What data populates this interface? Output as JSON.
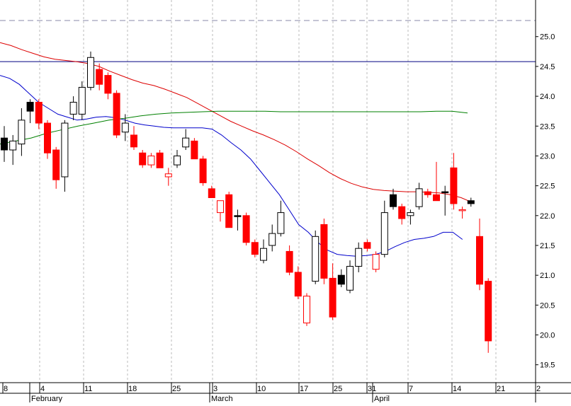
{
  "chart_data": {
    "type": "candlestick",
    "title": "",
    "xlabel": "",
    "ylabel": "",
    "ylim": [
      19.2,
      25.4
    ],
    "y_ticks": [
      "25.0",
      "24.5",
      "24.0",
      "23.5",
      "23.0",
      "22.5",
      "22.0",
      "21.5",
      "21.0",
      "20.5",
      "20.0",
      "19.5"
    ],
    "x_day_ticks": [
      "8",
      "4",
      "11",
      "18",
      "25",
      "3",
      "10",
      "17",
      "25",
      "31",
      "7",
      "14",
      "21",
      "2"
    ],
    "x_month_labels": [
      "February",
      "March",
      "April"
    ],
    "grid": "vertical dashed",
    "horizontal_line": 24.58,
    "dashed_level": 25.27,
    "colors": {
      "up_candle": "#ffffff",
      "down_candle": "#000000",
      "red_candle": "#ff0000",
      "ma_short": "#0000cc",
      "ma_medium": "#dd0000",
      "ma_long": "#008000",
      "level_line": "#000080",
      "grid": "#bbbbbb"
    },
    "candles": [
      {
        "o": 23.3,
        "h": 23.5,
        "l": 22.9,
        "c": 23.1,
        "s": "dark"
      },
      {
        "o": 23.1,
        "h": 23.35,
        "l": 22.85,
        "c": 23.25,
        "s": "up"
      },
      {
        "o": 23.2,
        "h": 23.8,
        "l": 23.0,
        "c": 23.6,
        "s": "up"
      },
      {
        "o": 23.75,
        "h": 23.95,
        "l": 23.55,
        "c": 23.9,
        "s": "dark"
      },
      {
        "o": 23.9,
        "h": 23.95,
        "l": 23.45,
        "c": 23.55,
        "s": "red"
      },
      {
        "o": 23.55,
        "h": 23.6,
        "l": 22.95,
        "c": 23.05,
        "s": "red"
      },
      {
        "o": 23.1,
        "h": 23.15,
        "l": 22.45,
        "c": 22.6,
        "s": "red"
      },
      {
        "o": 22.65,
        "h": 23.6,
        "l": 22.4,
        "c": 23.55,
        "s": "up"
      },
      {
        "o": 23.7,
        "h": 24.0,
        "l": 23.6,
        "c": 23.9,
        "s": "up"
      },
      {
        "o": 23.7,
        "h": 24.25,
        "l": 23.6,
        "c": 24.15,
        "s": "up"
      },
      {
        "o": 24.15,
        "h": 24.75,
        "l": 24.1,
        "c": 24.65,
        "s": "up"
      },
      {
        "o": 24.45,
        "h": 24.55,
        "l": 24.1,
        "c": 24.2,
        "s": "red"
      },
      {
        "o": 24.35,
        "h": 24.4,
        "l": 23.95,
        "c": 24.05,
        "s": "red"
      },
      {
        "o": 24.05,
        "h": 24.1,
        "l": 23.3,
        "c": 23.35,
        "s": "red"
      },
      {
        "o": 23.55,
        "h": 23.7,
        "l": 23.25,
        "c": 23.4,
        "s": "up"
      },
      {
        "o": 23.35,
        "h": 23.5,
        "l": 23.1,
        "c": 23.15,
        "s": "red"
      },
      {
        "o": 23.05,
        "h": 23.1,
        "l": 22.8,
        "c": 22.85,
        "s": "red"
      },
      {
        "o": 22.85,
        "h": 23.05,
        "l": 22.8,
        "c": 23.0,
        "s": "redup"
      },
      {
        "o": 23.05,
        "h": 23.1,
        "l": 22.8,
        "c": 22.8,
        "s": "red"
      },
      {
        "o": 22.7,
        "h": 22.8,
        "l": 22.5,
        "c": 22.65,
        "s": "redup"
      },
      {
        "o": 22.85,
        "h": 23.1,
        "l": 22.8,
        "c": 23.0,
        "s": "up"
      },
      {
        "o": 23.15,
        "h": 23.45,
        "l": 23.1,
        "c": 23.3,
        "s": "up"
      },
      {
        "o": 23.25,
        "h": 23.3,
        "l": 22.95,
        "c": 22.95,
        "s": "red"
      },
      {
        "o": 22.95,
        "h": 23.0,
        "l": 22.5,
        "c": 22.55,
        "s": "red"
      },
      {
        "o": 22.45,
        "h": 22.5,
        "l": 22.3,
        "c": 22.3,
        "s": "red"
      },
      {
        "o": 22.05,
        "h": 22.25,
        "l": 21.9,
        "c": 22.25,
        "s": "redup"
      },
      {
        "o": 22.35,
        "h": 22.4,
        "l": 21.8,
        "c": 21.8,
        "s": "red"
      },
      {
        "o": 22.0,
        "h": 22.1,
        "l": 21.75,
        "c": 22.0,
        "s": "dark"
      },
      {
        "o": 22.0,
        "h": 22.05,
        "l": 21.5,
        "c": 21.55,
        "s": "red"
      },
      {
        "o": 21.55,
        "h": 21.6,
        "l": 21.3,
        "c": 21.35,
        "s": "red"
      },
      {
        "o": 21.25,
        "h": 21.6,
        "l": 21.2,
        "c": 21.45,
        "s": "up"
      },
      {
        "o": 21.5,
        "h": 21.85,
        "l": 21.4,
        "c": 21.7,
        "s": "up"
      },
      {
        "o": 21.7,
        "h": 22.25,
        "l": 21.65,
        "c": 22.05,
        "s": "up"
      },
      {
        "o": 21.4,
        "h": 21.5,
        "l": 21.0,
        "c": 21.05,
        "s": "red"
      },
      {
        "o": 21.05,
        "h": 21.15,
        "l": 20.6,
        "c": 20.65,
        "s": "red"
      },
      {
        "o": 20.2,
        "h": 20.7,
        "l": 20.15,
        "c": 20.65,
        "s": "redup"
      },
      {
        "o": 20.9,
        "h": 21.75,
        "l": 20.85,
        "c": 21.65,
        "s": "up"
      },
      {
        "o": 21.85,
        "h": 21.95,
        "l": 20.85,
        "c": 20.95,
        "s": "red"
      },
      {
        "o": 20.95,
        "h": 21.2,
        "l": 20.25,
        "c": 20.3,
        "s": "red"
      },
      {
        "o": 20.85,
        "h": 21.1,
        "l": 20.8,
        "c": 21.0,
        "s": "dark"
      },
      {
        "o": 20.75,
        "h": 21.25,
        "l": 20.7,
        "c": 21.15,
        "s": "up"
      },
      {
        "o": 21.15,
        "h": 21.55,
        "l": 21.05,
        "c": 21.45,
        "s": "up"
      },
      {
        "o": 21.55,
        "h": 21.6,
        "l": 21.4,
        "c": 21.45,
        "s": "red"
      },
      {
        "o": 21.1,
        "h": 21.4,
        "l": 21.05,
        "c": 21.35,
        "s": "redup"
      },
      {
        "o": 21.35,
        "h": 22.25,
        "l": 21.3,
        "c": 22.05,
        "s": "up"
      },
      {
        "o": 22.15,
        "h": 22.45,
        "l": 22.1,
        "c": 22.35,
        "s": "dark"
      },
      {
        "o": 22.15,
        "h": 22.2,
        "l": 21.85,
        "c": 21.95,
        "s": "red"
      },
      {
        "o": 22.0,
        "h": 22.1,
        "l": 21.85,
        "c": 22.05,
        "s": "up"
      },
      {
        "o": 22.15,
        "h": 22.55,
        "l": 22.1,
        "c": 22.45,
        "s": "up"
      },
      {
        "o": 22.4,
        "h": 22.45,
        "l": 22.3,
        "c": 22.35,
        "s": "red"
      },
      {
        "o": 22.35,
        "h": 22.9,
        "l": 22.25,
        "c": 22.25,
        "s": "red"
      },
      {
        "o": 22.4,
        "h": 22.5,
        "l": 22.0,
        "c": 22.4,
        "s": "dark"
      },
      {
        "o": 22.8,
        "h": 23.05,
        "l": 22.1,
        "c": 22.2,
        "s": "red"
      },
      {
        "o": 22.1,
        "h": 22.15,
        "l": 21.95,
        "c": 22.1,
        "s": "redup"
      },
      {
        "o": 22.25,
        "h": 22.3,
        "l": 22.15,
        "c": 22.2,
        "s": "dark"
      },
      {
        "o": 21.65,
        "h": 21.95,
        "l": 20.75,
        "c": 20.85,
        "s": "red"
      },
      {
        "o": 20.9,
        "h": 20.95,
        "l": 19.7,
        "c": 19.9,
        "s": "red"
      }
    ],
    "series": [
      {
        "color": "#0000cc",
        "values": [
          24.35,
          24.3,
          24.2,
          24.05,
          23.9,
          23.8,
          23.7,
          23.65,
          23.6,
          23.62,
          23.65,
          23.66,
          23.64,
          23.6,
          23.55,
          23.52,
          23.5,
          23.48,
          23.47,
          23.47,
          23.47,
          23.47,
          23.45,
          23.35,
          23.22,
          23.1,
          22.95,
          22.75,
          22.55,
          22.35,
          22.1,
          21.85,
          21.72,
          21.55,
          21.42,
          21.35,
          21.33,
          21.32,
          21.33,
          21.35,
          21.4,
          21.48,
          21.55,
          21.6,
          21.62,
          21.65,
          21.72,
          21.72,
          21.6
        ]
      },
      {
        "color": "#dd0000",
        "values": [
          24.9,
          24.85,
          24.78,
          24.72,
          24.66,
          24.62,
          24.6,
          24.58,
          24.55,
          24.5,
          24.42,
          24.35,
          24.28,
          24.22,
          24.18,
          24.12,
          24.05,
          23.98,
          23.88,
          23.78,
          23.68,
          23.58,
          23.5,
          23.42,
          23.35,
          23.27,
          23.18,
          23.07,
          22.95,
          22.84,
          22.72,
          22.62,
          22.54,
          22.48,
          22.44,
          22.42,
          22.41,
          22.4,
          22.4,
          22.39,
          22.38,
          22.35,
          22.3,
          22.22
        ]
      },
      {
        "color": "#008000",
        "values": [
          23.2,
          23.25,
          23.3,
          23.38,
          23.44,
          23.5,
          23.55,
          23.6,
          23.63,
          23.67,
          23.7,
          23.72,
          23.73,
          23.74,
          23.75,
          23.75,
          23.75,
          23.75,
          23.74,
          23.74,
          23.74,
          23.74,
          23.74,
          23.74,
          23.74,
          23.74,
          23.74,
          23.74,
          23.75,
          23.75,
          23.72
        ]
      }
    ]
  }
}
